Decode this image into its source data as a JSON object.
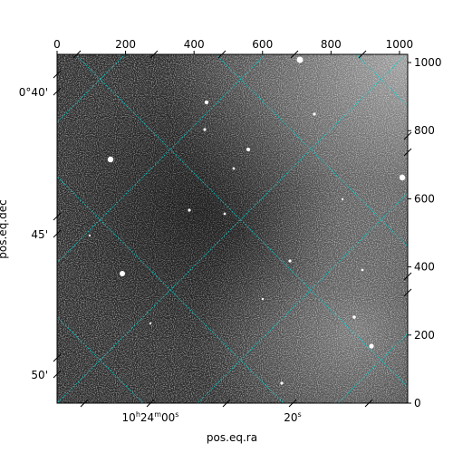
{
  "chart_data": {
    "type": "heatmap",
    "title": "",
    "xlabel": "pos.eq.ra",
    "ylabel": "pos.eq.dec",
    "pixel_axes": {
      "x": {
        "range": [
          0,
          1024
        ],
        "tick_labels": [
          "0",
          "200",
          "400",
          "600",
          "800",
          "1000"
        ],
        "ticks": [
          0,
          200,
          400,
          600,
          800,
          1000
        ]
      },
      "y": {
        "range": [
          0,
          1024
        ],
        "tick_labels": [
          "0",
          "200",
          "400",
          "600",
          "800",
          "1000"
        ],
        "ticks": [
          0,
          200,
          400,
          600,
          800,
          1000
        ]
      }
    },
    "world_axes": {
      "ra_tick_labels": [
        "10h24m00s",
        "20s"
      ],
      "dec_tick_labels": [
        "0°40'",
        "45'",
        "50'"
      ]
    },
    "colormap": "gray",
    "grid": true,
    "grid_color": "#00d0d0",
    "background": "noisy sky image with faint diffuse emission and point sources"
  }
}
